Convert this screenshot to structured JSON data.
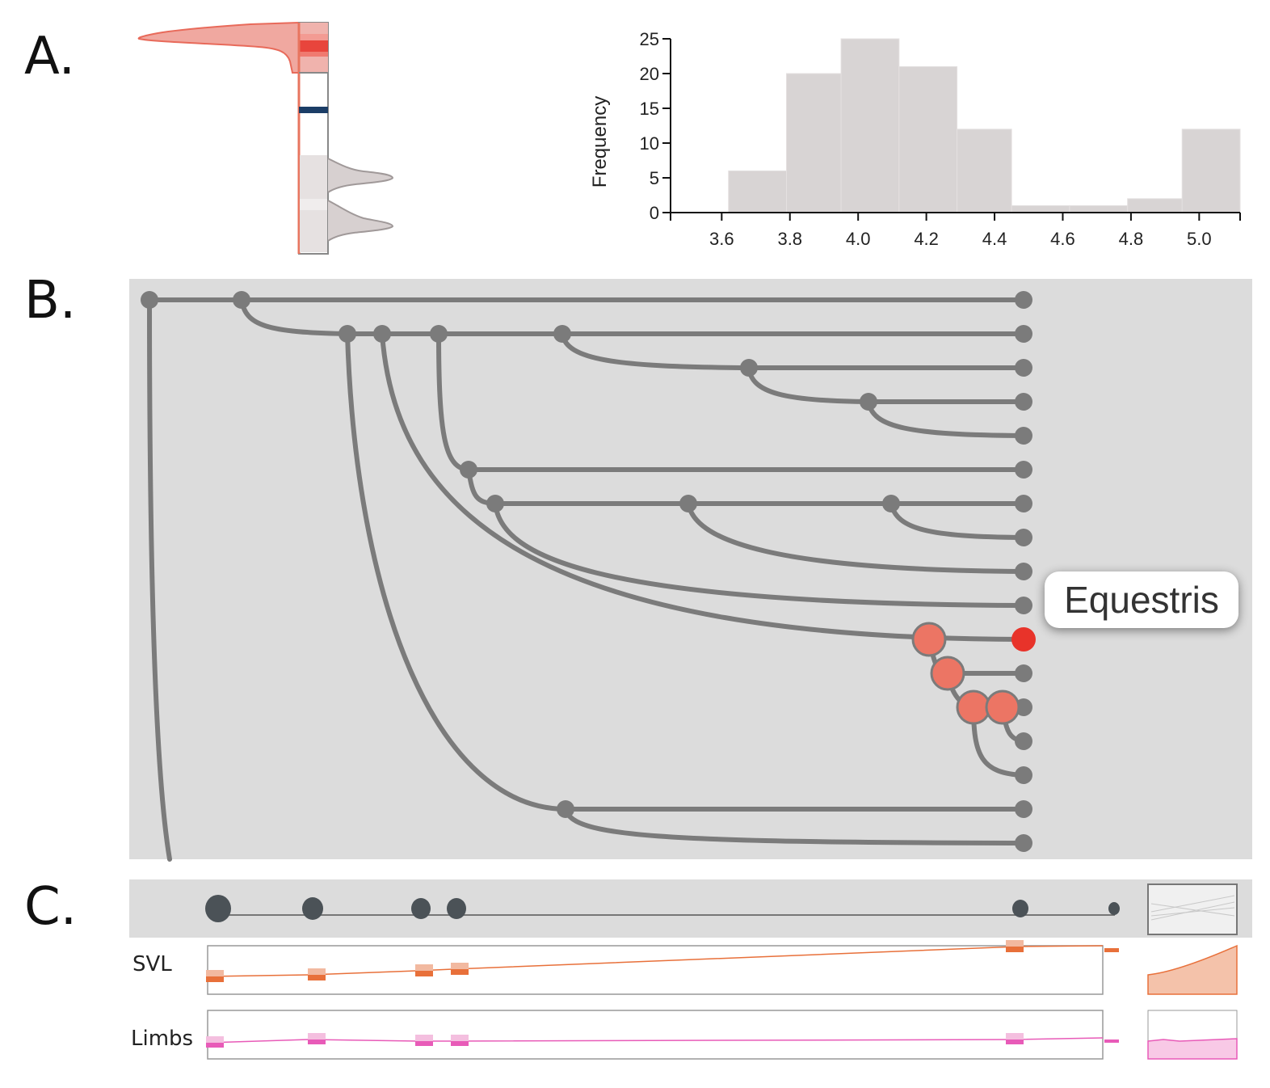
{
  "panels": {
    "a": "A.",
    "b": "B.",
    "c": "C."
  },
  "chart_data": {
    "type": "bar",
    "ylabel": "Frequency",
    "xlabel": "",
    "xlim": [
      3.45,
      5.12
    ],
    "ylim": [
      0,
      25
    ],
    "x_ticks": [
      "3.6",
      "3.8",
      "4.0",
      "4.2",
      "4.4",
      "4.6",
      "4.8",
      "5.0"
    ],
    "y_ticks": [
      "0",
      "5",
      "10",
      "15",
      "20",
      "25"
    ],
    "bins": [
      {
        "x0": 3.62,
        "x1": 3.79,
        "value": 6
      },
      {
        "x0": 3.79,
        "x1": 3.95,
        "value": 20
      },
      {
        "x0": 3.95,
        "x1": 4.12,
        "value": 25
      },
      {
        "x0": 4.12,
        "x1": 4.29,
        "value": 21
      },
      {
        "x0": 4.29,
        "x1": 4.45,
        "value": 12
      },
      {
        "x0": 4.45,
        "x1": 4.62,
        "value": 1
      },
      {
        "x0": 4.62,
        "x1": 4.79,
        "value": 1
      },
      {
        "x0": 4.79,
        "x1": 4.95,
        "value": 2
      },
      {
        "x0": 4.95,
        "x1": 5.12,
        "value": 12
      }
    ],
    "bar_color": "#d8d4d4"
  },
  "tree": {
    "selected_tip_label": "Equestris",
    "selected_color": "#e8332a",
    "highlight_color": "#ec7564",
    "branch_color": "#7b7b7b"
  },
  "tracks": {
    "svl_label": "SVL",
    "limbs_label": "Limbs",
    "svl_color": "#e8703a",
    "limbs_color": "#e85bb8"
  }
}
